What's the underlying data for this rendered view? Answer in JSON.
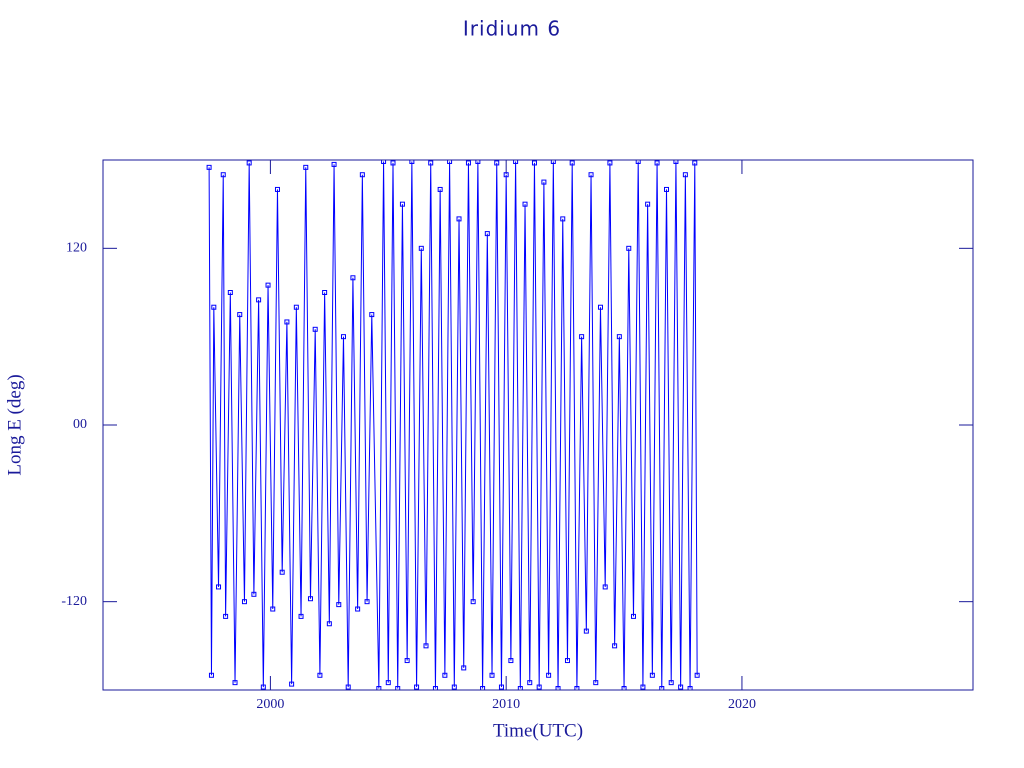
{
  "chart_data": {
    "type": "line",
    "title": "Iridium 6",
    "x_label": "Time(UTC)",
    "y_label": "Long E (deg)",
    "xlim": [
      1992.9,
      2029.8
    ],
    "ylim": [
      -180,
      180
    ],
    "xticks": [
      2000,
      2010,
      2020
    ],
    "yticks": [
      -120,
      {
        "value": 0,
        "label": "00"
      },
      120
    ],
    "axis_color": "#1a1a9a",
    "series": [
      {
        "color": "#0000ff",
        "x": [
          1997.4,
          1997.5,
          1997.6,
          1997.8,
          1998.0,
          1998.1,
          1998.3,
          1998.5,
          1998.7,
          1998.9,
          1999.1,
          1999.3,
          1999.5,
          1999.7,
          1999.9,
          2000.1,
          2000.3,
          2000.5,
          2000.7,
          2000.9,
          2001.1,
          2001.3,
          2001.5,
          2001.7,
          2001.9,
          2002.1,
          2002.3,
          2002.5,
          2002.7,
          2002.9,
          2003.1,
          2003.3,
          2003.5,
          2003.7,
          2003.9,
          2004.1,
          2004.3,
          2004.6,
          2004.8,
          2005.0,
          2005.2,
          2005.4,
          2005.6,
          2005.8,
          2006.0,
          2006.2,
          2006.4,
          2006.6,
          2006.8,
          2007.0,
          2007.2,
          2007.4,
          2007.6,
          2007.8,
          2008.0,
          2008.2,
          2008.4,
          2008.6,
          2008.8,
          2009.0,
          2009.2,
          2009.4,
          2009.6,
          2009.8,
          2010.0,
          2010.2,
          2010.4,
          2010.6,
          2010.8,
          2011.0,
          2011.2,
          2011.4,
          2011.6,
          2011.8,
          2012.0,
          2012.2,
          2012.4,
          2012.6,
          2012.8,
          2013.0,
          2013.2,
          2013.4,
          2013.6,
          2013.8,
          2014.0,
          2014.2,
          2014.4,
          2014.6,
          2014.8,
          2015.0,
          2015.2,
          2015.4,
          2015.6,
          2015.8,
          2016.0,
          2016.2,
          2016.4,
          2016.6,
          2016.8,
          2017.0,
          2017.2,
          2017.4,
          2017.6,
          2017.8,
          2018.0,
          2018.1
        ],
        "values": [
          175,
          -170,
          80,
          -110,
          170,
          -130,
          90,
          -175,
          75,
          -120,
          178,
          -115,
          85,
          -178,
          95,
          -125,
          160,
          -100,
          70,
          -176,
          80,
          -130,
          175,
          -118,
          65,
          -170,
          90,
          -135,
          177,
          -122,
          60,
          -178,
          100,
          -125,
          170,
          -120,
          75,
          -179,
          179,
          -175,
          178,
          -179,
          150,
          -160,
          179,
          -178,
          120,
          -150,
          178,
          -179,
          160,
          -170,
          179,
          -178,
          140,
          -165,
          178,
          -120,
          179,
          -179,
          130,
          -170,
          178,
          -178,
          170,
          -160,
          179,
          -179,
          150,
          -175,
          178,
          -178,
          165,
          -170,
          179,
          -179,
          140,
          -160,
          178,
          -179,
          60,
          -140,
          170,
          -175,
          80,
          -110,
          178,
          -150,
          60,
          -179,
          120,
          -130,
          179,
          -178,
          150,
          -170,
          178,
          -179,
          160,
          -175,
          179,
          -178,
          170,
          -179,
          178,
          -170
        ]
      }
    ]
  }
}
